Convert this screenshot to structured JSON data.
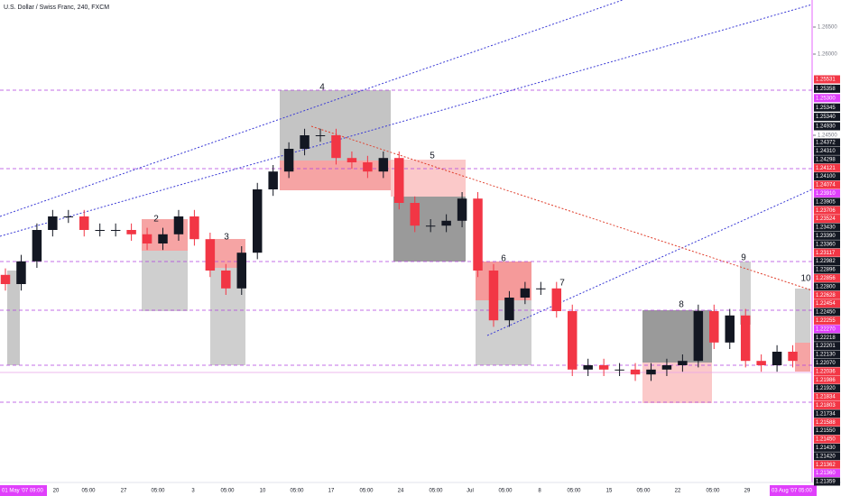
{
  "chart_data": {
    "type": "candlestick",
    "title": "U.S. Dollar / Swiss Franc, 240, FXCM",
    "up_color": "#131722",
    "down_color": "#f23645",
    "ylim": [
      1.18,
      1.27
    ],
    "yticks": [
      {
        "value": 1.265,
        "label": "1.26500"
      },
      {
        "value": 1.26,
        "label": "1.26000"
      },
      {
        "value": 1.245,
        "label": "1.24500"
      }
    ],
    "open": [
      1.2192,
      1.2175,
      1.2217,
      1.2275,
      1.23,
      1.23,
      1.2275,
      1.2275,
      1.2275,
      1.2267,
      1.225,
      1.2267,
      1.23,
      1.2258,
      1.22,
      1.2167,
      1.2233,
      1.235,
      1.2383,
      1.2425,
      1.245,
      1.245,
      1.2408,
      1.24,
      1.2383,
      1.2408,
      1.2325,
      1.2283,
      1.2283,
      1.2292,
      1.2333,
      1.22,
      1.2108,
      1.215,
      1.2167,
      1.2167,
      1.2125,
      1.2017,
      1.2025,
      1.2017,
      1.2017,
      1.2008,
      1.2017,
      1.2025,
      1.2033,
      1.2125,
      1.2067,
      1.2117,
      1.2033,
      1.2025,
      1.205
    ],
    "high": [
      1.2204,
      1.2229,
      1.2287,
      1.2312,
      1.2312,
      1.2312,
      1.2287,
      1.2287,
      1.2287,
      1.2279,
      1.2279,
      1.2312,
      1.2312,
      1.227,
      1.2212,
      1.2245,
      1.2362,
      1.2395,
      1.2437,
      1.2462,
      1.2462,
      1.2462,
      1.242,
      1.2412,
      1.242,
      1.242,
      1.2337,
      1.2295,
      1.2304,
      1.2345,
      1.2345,
      1.2212,
      1.2162,
      1.2179,
      1.2179,
      1.2179,
      1.2137,
      1.2037,
      1.2037,
      1.2029,
      1.2029,
      1.2029,
      1.2037,
      1.2045,
      1.2137,
      1.2137,
      1.2129,
      1.2129,
      1.2045,
      1.2062,
      1.2062
    ],
    "low": [
      1.2163,
      1.2163,
      1.2205,
      1.2263,
      1.2288,
      1.2263,
      1.2263,
      1.2263,
      1.2255,
      1.2238,
      1.2238,
      1.2255,
      1.2246,
      1.2188,
      1.2155,
      1.2155,
      1.2221,
      1.2338,
      1.2371,
      1.2413,
      1.2438,
      1.2396,
      1.2388,
      1.2371,
      1.2371,
      1.2313,
      1.2271,
      1.2271,
      1.2271,
      1.228,
      1.2188,
      1.2096,
      1.2096,
      1.2138,
      1.2155,
      1.2113,
      1.2005,
      1.2005,
      1.2005,
      1.2005,
      1.1996,
      1.1996,
      1.2005,
      1.2013,
      1.2021,
      1.2055,
      1.2055,
      1.2021,
      1.2013,
      1.2013,
      1.2021
    ],
    "close": [
      1.2175,
      1.2217,
      1.2275,
      1.23,
      1.23,
      1.2275,
      1.2275,
      1.2275,
      1.2267,
      1.225,
      1.2267,
      1.23,
      1.2258,
      1.22,
      1.2167,
      1.2233,
      1.235,
      1.2383,
      1.2425,
      1.245,
      1.245,
      1.2408,
      1.24,
      1.2383,
      1.2408,
      1.2325,
      1.2283,
      1.2283,
      1.2292,
      1.2333,
      1.22,
      1.2108,
      1.215,
      1.2167,
      1.2167,
      1.2125,
      1.2017,
      1.2025,
      1.2017,
      1.2017,
      1.2008,
      1.2017,
      1.2025,
      1.2033,
      1.2125,
      1.2067,
      1.2117,
      1.2033,
      1.2025,
      1.205,
      1.2033
    ],
    "x_labels": [
      "20",
      "05:00",
      "27",
      "05:00",
      "3",
      "05:00",
      "10",
      "05:00",
      "17",
      "05:00",
      "24",
      "05:00",
      "Jul",
      "05:00",
      "8",
      "05:00",
      "15",
      "05:00",
      "22",
      "05:00",
      "29"
    ],
    "start_label": "01 May '07   09:00",
    "end_label": "03 Aug '07   05:00",
    "zone_labels": [
      2,
      3,
      4,
      5,
      6,
      7,
      8,
      9,
      10
    ],
    "tag_colors": {
      "red": "#f23645",
      "black": "#131722",
      "magenta": "#e040fb"
    },
    "price_tags": [
      {
        "label": "1.25531",
        "color": "red"
      },
      {
        "label": "1.25358",
        "color": "black"
      },
      {
        "label": "1.25300",
        "color": "magenta"
      },
      {
        "label": "1.25345",
        "color": "black"
      },
      {
        "label": "1.25340",
        "color": "black"
      },
      {
        "label": "1.24930",
        "color": "black"
      },
      {
        "label": "1.24372",
        "color": "black"
      },
      {
        "label": "1.24310",
        "color": "black"
      },
      {
        "label": "1.24298",
        "color": "black"
      },
      {
        "label": "1.24121",
        "color": "red"
      },
      {
        "label": "1.24100",
        "color": "black"
      },
      {
        "label": "1.24074",
        "color": "red"
      },
      {
        "label": "1.23910",
        "color": "magenta"
      },
      {
        "label": "1.23905",
        "color": "black"
      },
      {
        "label": "1.23706",
        "color": "red"
      },
      {
        "label": "1.23524",
        "color": "red"
      },
      {
        "label": "1.23430",
        "color": "black"
      },
      {
        "label": "1.23390",
        "color": "black"
      },
      {
        "label": "1.23360",
        "color": "black"
      },
      {
        "label": "1.23117",
        "color": "red"
      },
      {
        "label": "1.22982",
        "color": "black"
      },
      {
        "label": "1.22896",
        "color": "black"
      },
      {
        "label": "1.22856",
        "color": "red"
      },
      {
        "label": "1.22800",
        "color": "black"
      },
      {
        "label": "1.22628",
        "color": "red"
      },
      {
        "label": "1.22454",
        "color": "red"
      },
      {
        "label": "1.22450",
        "color": "black"
      },
      {
        "label": "1.22255",
        "color": "red"
      },
      {
        "label": "1.22270",
        "color": "magenta"
      },
      {
        "label": "1.22218",
        "color": "black"
      },
      {
        "label": "1.22201",
        "color": "black"
      },
      {
        "label": "1.22130",
        "color": "black"
      },
      {
        "label": "1.22070",
        "color": "black"
      },
      {
        "label": "1.22036",
        "color": "red"
      },
      {
        "label": "1.21986",
        "color": "red"
      },
      {
        "label": "1.21920",
        "color": "black"
      },
      {
        "label": "1.21834",
        "color": "red"
      },
      {
        "label": "1.21803",
        "color": "red"
      },
      {
        "label": "1.21734",
        "color": "black"
      },
      {
        "label": "1.21588",
        "color": "red"
      },
      {
        "label": "1.21550",
        "color": "black"
      },
      {
        "label": "1.21450",
        "color": "red"
      },
      {
        "label": "1.21430",
        "color": "black"
      },
      {
        "label": "1.21420",
        "color": "black"
      },
      {
        "label": "1.21362",
        "color": "red"
      },
      {
        "label": "1.21360",
        "color": "magenta"
      },
      {
        "label": "1.21359",
        "color": "black"
      }
    ]
  }
}
